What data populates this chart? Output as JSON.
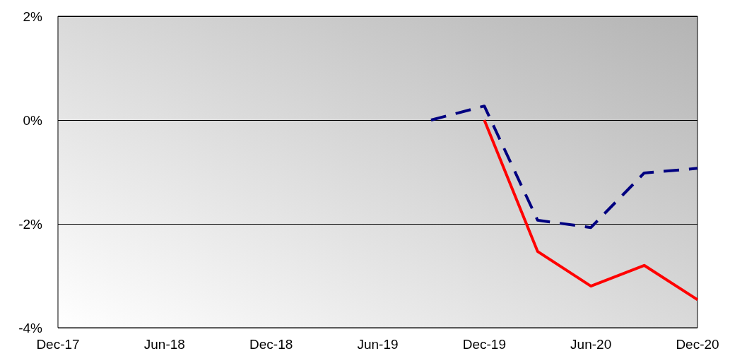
{
  "chart_data": {
    "type": "line",
    "categories": [
      "Dec-17",
      null,
      "Jun-18",
      null,
      "Dec-18",
      null,
      "Jun-19",
      null,
      "Dec-19",
      null,
      "Jun-20",
      null,
      "Dec-20"
    ],
    "series": [
      {
        "color": "#000080",
        "line_style": "dashed",
        "values": [
          null,
          null,
          null,
          null,
          null,
          null,
          null,
          0,
          0.27,
          -1.93,
          -2.07,
          -1.02,
          -0.93
        ]
      },
      {
        "color": "#ff0000",
        "line_style": "solid",
        "values": [
          null,
          null,
          null,
          null,
          null,
          null,
          null,
          null,
          0,
          -2.53,
          -3.2,
          -2.8,
          -3.46
        ]
      }
    ],
    "ylim": [
      -4,
      2
    ],
    "yticks": [
      {
        "value": -4,
        "label": "-4%"
      },
      {
        "value": -2,
        "label": "-2%"
      },
      {
        "value": 0,
        "label": "0%"
      },
      {
        "value": 2,
        "label": "2%"
      }
    ],
    "grid": "y",
    "marker": "none"
  }
}
